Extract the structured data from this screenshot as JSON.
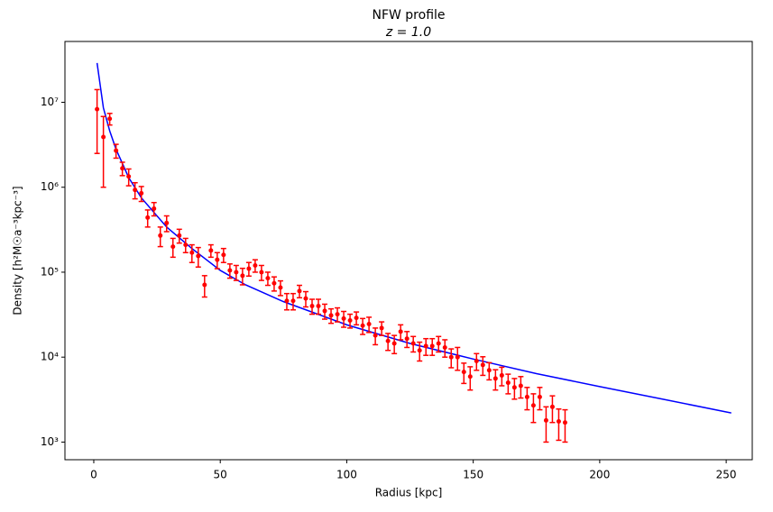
{
  "chart_data": {
    "type": "line",
    "title": "NFW profile",
    "subtitle": "z = 1.0",
    "xlabel": "Radius [kpc]",
    "ylabel": "Density [h²M☉a⁻³kpc⁻³]",
    "xlim": [
      -11.4,
      260.3
    ],
    "xticks": [
      0,
      50,
      100,
      150,
      200,
      250
    ],
    "ylim": [
      620,
      52000000
    ],
    "log_y": true,
    "yticks": [
      {
        "value": 1000,
        "label": "10³"
      },
      {
        "value": 10000,
        "label": "10⁴"
      },
      {
        "value": 100000,
        "label": "10⁵"
      },
      {
        "value": 1000000,
        "label": "10⁶"
      },
      {
        "value": 10000000,
        "label": "10⁷"
      }
    ],
    "series": [
      {
        "type": "line",
        "color": "#0000ff",
        "x": [
          1.3,
          3.8,
          6.3,
          8.8,
          13.8,
          18.8,
          28.8,
          38.8,
          50,
          60,
          75,
          100,
          125,
          150,
          175,
          200,
          225,
          252
        ],
        "values": [
          29000000,
          8600000,
          4600000,
          2800000,
          1300000,
          750000,
          340000,
          190000,
          105000,
          71000,
          45000,
          24000,
          14500,
          9500,
          6400,
          4500,
          3200,
          2200
        ]
      },
      {
        "type": "errorbar",
        "color": "#ff0000",
        "x": [
          1.3,
          3.8,
          6.3,
          8.8,
          11.3,
          13.8,
          16.3,
          18.8,
          21.3,
          23.8,
          26.3,
          28.8,
          31.3,
          33.8,
          36.3,
          38.8,
          41.3,
          43.8,
          46.3,
          48.8,
          51.3,
          53.8,
          56.3,
          58.8,
          61.3,
          63.8,
          66.3,
          68.8,
          71.3,
          73.8,
          76.3,
          78.8,
          81.3,
          83.8,
          86.3,
          88.8,
          91.3,
          93.8,
          96.3,
          98.8,
          101.3,
          103.8,
          106.3,
          108.8,
          111.3,
          113.8,
          116.3,
          118.8,
          121.3,
          123.8,
          126.3,
          128.8,
          131.3,
          133.8,
          136.3,
          138.8,
          141.3,
          143.8,
          146.3,
          148.8,
          151.3,
          153.8,
          156.3,
          158.8,
          161.3,
          163.8,
          166.3,
          168.8,
          171.3,
          173.8,
          176.3,
          178.8,
          181.3,
          183.8,
          186.3
        ],
        "values": [
          8300000,
          3900000,
          6400000,
          2700000,
          1670000,
          1340000,
          930000,
          850000,
          440000,
          560000,
          270000,
          380000,
          200000,
          270000,
          210000,
          170000,
          155000,
          71000,
          180000,
          140000,
          160000,
          105000,
          100000,
          91000,
          110000,
          120000,
          100000,
          85000,
          74000,
          66000,
          46000,
          46000,
          60000,
          49000,
          40000,
          40000,
          35000,
          31000,
          32000,
          28500,
          27000,
          29000,
          23500,
          24500,
          18000,
          22000,
          15500,
          14500,
          20000,
          16500,
          14500,
          12000,
          13500,
          13500,
          14500,
          13000,
          10000,
          10000,
          6700,
          5900,
          9000,
          8100,
          7000,
          5600,
          6100,
          5000,
          4400,
          4600,
          3400,
          2700,
          3400,
          1800,
          2600,
          1750,
          1700
        ],
        "errors": [
          5800000,
          2900000,
          1000000,
          500000,
          300000,
          300000,
          200000,
          170000,
          100000,
          100000,
          70000,
          80000,
          50000,
          50000,
          40000,
          40000,
          40000,
          20000,
          30000,
          30000,
          30000,
          20000,
          20000,
          20000,
          20000,
          20000,
          20000,
          15000,
          14000,
          13000,
          10000,
          10000,
          10000,
          10000,
          8000,
          8000,
          7000,
          6000,
          6000,
          6000,
          5000,
          5000,
          5000,
          5000,
          4000,
          4000,
          3500,
          3500,
          4000,
          3500,
          3000,
          3000,
          3000,
          3000,
          3000,
          3000,
          2500,
          3000,
          1800,
          1800,
          2000,
          2000,
          1600,
          1500,
          1500,
          1300,
          1200,
          1300,
          1000,
          1000,
          1000,
          800,
          900,
          700,
          700
        ]
      }
    ]
  }
}
